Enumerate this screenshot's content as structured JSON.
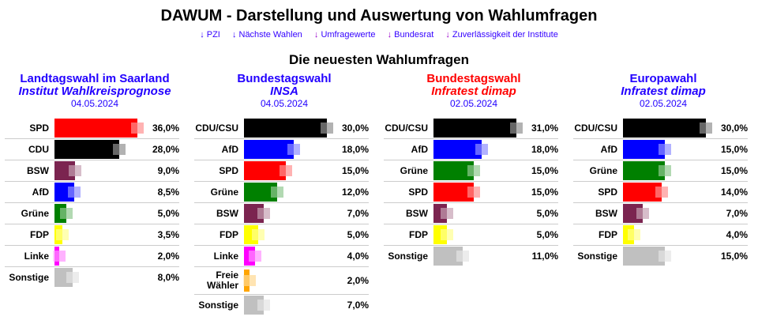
{
  "header": {
    "title": "DAWUM - Darstellung und Auswertung von Wahlumfragen",
    "subtitle": "Die neuesten Wahlumfragen"
  },
  "nav": [
    {
      "arrow": "↓",
      "label": "PZI"
    },
    {
      "arrow": "↓",
      "label": "Nächste Wahlen"
    },
    {
      "arrow": "↓",
      "label": "Umfragewerte"
    },
    {
      "arrow": "↓",
      "label": "Bundesrat"
    },
    {
      "arrow": "↓",
      "label": "Zuverlässigkeit der Institute"
    }
  ],
  "colors": {
    "SPD": "#ff0000",
    "CDU": "#000000",
    "CDU/CSU": "#000000",
    "BSW": "#7b2450",
    "AfD": "#0000ff",
    "Grüne": "#008000",
    "FDP": "#ffff00",
    "Linke": "#ff00ff",
    "Freie Wähler": "#ffa500",
    "Sonstige": "#c0c0c0"
  },
  "polls": [
    {
      "election": "Landtagswahl im Saarland",
      "election_color": "#2200ff",
      "institute": "Institut Wahlkreisprognose",
      "date": "04.05.2024",
      "results": [
        {
          "party": "SPD",
          "value": 36.0,
          "label": "36,0%"
        },
        {
          "party": "CDU",
          "value": 28.0,
          "label": "28,0%"
        },
        {
          "party": "BSW",
          "value": 9.0,
          "label": "9,0%"
        },
        {
          "party": "AfD",
          "value": 8.5,
          "label": "8,5%"
        },
        {
          "party": "Grüne",
          "value": 5.0,
          "label": "5,0%"
        },
        {
          "party": "FDP",
          "value": 3.5,
          "label": "3,5%"
        },
        {
          "party": "Linke",
          "value": 2.0,
          "label": "2,0%"
        },
        {
          "party": "Sonstige",
          "value": 8.0,
          "label": "8,0%"
        }
      ]
    },
    {
      "election": "Bundestagswahl",
      "election_color": "#2200ff",
      "institute": "INSA",
      "date": "04.05.2024",
      "results": [
        {
          "party": "CDU/CSU",
          "value": 30.0,
          "label": "30,0%"
        },
        {
          "party": "AfD",
          "value": 18.0,
          "label": "18,0%"
        },
        {
          "party": "SPD",
          "value": 15.0,
          "label": "15,0%"
        },
        {
          "party": "Grüne",
          "value": 12.0,
          "label": "12,0%"
        },
        {
          "party": "BSW",
          "value": 7.0,
          "label": "7,0%"
        },
        {
          "party": "FDP",
          "value": 5.0,
          "label": "5,0%"
        },
        {
          "party": "Linke",
          "value": 4.0,
          "label": "4,0%"
        },
        {
          "party": "Freie Wähler",
          "value": 2.0,
          "label": "2,0%"
        },
        {
          "party": "Sonstige",
          "value": 7.0,
          "label": "7,0%"
        }
      ]
    },
    {
      "election": "Bundestagswahl",
      "election_color": "#ff0000",
      "institute": "Infratest dimap",
      "date": "02.05.2024",
      "results": [
        {
          "party": "CDU/CSU",
          "value": 31.0,
          "label": "31,0%"
        },
        {
          "party": "AfD",
          "value": 18.0,
          "label": "18,0%"
        },
        {
          "party": "Grüne",
          "value": 15.0,
          "label": "15,0%"
        },
        {
          "party": "SPD",
          "value": 15.0,
          "label": "15,0%"
        },
        {
          "party": "BSW",
          "value": 5.0,
          "label": "5,0%"
        },
        {
          "party": "FDP",
          "value": 5.0,
          "label": "5,0%"
        },
        {
          "party": "Sonstige",
          "value": 11.0,
          "label": "11,0%"
        }
      ]
    },
    {
      "election": "Europawahl",
      "election_color": "#2200ff",
      "institute": "Infratest dimap",
      "date": "02.05.2024",
      "results": [
        {
          "party": "CDU/CSU",
          "value": 30.0,
          "label": "30,0%"
        },
        {
          "party": "AfD",
          "value": 15.0,
          "label": "15,0%"
        },
        {
          "party": "Grüne",
          "value": 15.0,
          "label": "15,0%"
        },
        {
          "party": "SPD",
          "value": 14.0,
          "label": "14,0%"
        },
        {
          "party": "BSW",
          "value": 7.0,
          "label": "7,0%"
        },
        {
          "party": "FDP",
          "value": 4.0,
          "label": "4,0%"
        },
        {
          "party": "Sonstige",
          "value": 15.0,
          "label": "15,0%"
        }
      ]
    }
  ]
}
